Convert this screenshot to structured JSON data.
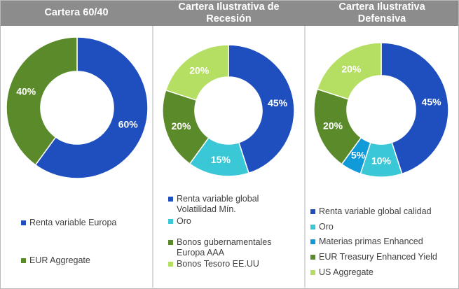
{
  "chart_data": [
    {
      "type": "pie",
      "title": "Cartera 60/40",
      "slices": [
        {
          "name": "Renta variable Europa",
          "value": 60,
          "label": "60%",
          "color": "#1f4fbf"
        },
        {
          "name": "EUR Aggregate",
          "value": 40,
          "label": "40%",
          "color": "#5b8a2b"
        }
      ]
    },
    {
      "type": "pie",
      "title": "Cartera Ilustrativa de Recesión",
      "slices": [
        {
          "name": "Renta variable global Volatilidad Mín.",
          "value": 45,
          "label": "45%",
          "color": "#1f4fbf"
        },
        {
          "name": "Oro",
          "value": 15,
          "label": "15%",
          "color": "#3bc8d6"
        },
        {
          "name": "Bonos gubernamentales Europa AAA",
          "value": 20,
          "label": "20%",
          "color": "#5b8a2b"
        },
        {
          "name": "Bonos Tesoro EE.UU",
          "value": 20,
          "label": "20%",
          "color": "#b5df63"
        }
      ]
    },
    {
      "type": "pie",
      "title": "Cartera Ilustrativa Defensiva",
      "slices": [
        {
          "name": "Renta variable global calidad",
          "value": 45,
          "label": "45%",
          "color": "#1f4fbf"
        },
        {
          "name": "Oro",
          "value": 10,
          "label": "10%",
          "color": "#3bc8d6"
        },
        {
          "name": "Materias primas Enhanced",
          "value": 5,
          "label": "5%",
          "color": "#119ad8"
        },
        {
          "name": "EUR Treasury Enhanced Yield",
          "value": 20,
          "label": "20%",
          "color": "#5b8a2b"
        },
        {
          "name": "US Aggregate",
          "value": 20,
          "label": "20%",
          "color": "#b5df63"
        }
      ]
    }
  ],
  "legends": {
    "c1": [
      "Renta variable Europa",
      "EUR Aggregate"
    ],
    "c2": [
      "Renta variable global",
      "Volatilidad Mín.",
      "Oro",
      "Bonos gubernamentales",
      "Europa AAA",
      "Bonos Tesoro EE.UU"
    ],
    "c3": [
      "Renta variable global calidad",
      "Oro",
      "Materias primas Enhanced",
      "EUR Treasury Enhanced Yield",
      "US Aggregate"
    ]
  },
  "titles": {
    "c1": "Cartera 60/40",
    "c2_line1": "Cartera Ilustrativa de",
    "c2_line2": "Recesión",
    "c3_line1": "Cartera Ilustrativa",
    "c3_line2": "Defensiva"
  }
}
